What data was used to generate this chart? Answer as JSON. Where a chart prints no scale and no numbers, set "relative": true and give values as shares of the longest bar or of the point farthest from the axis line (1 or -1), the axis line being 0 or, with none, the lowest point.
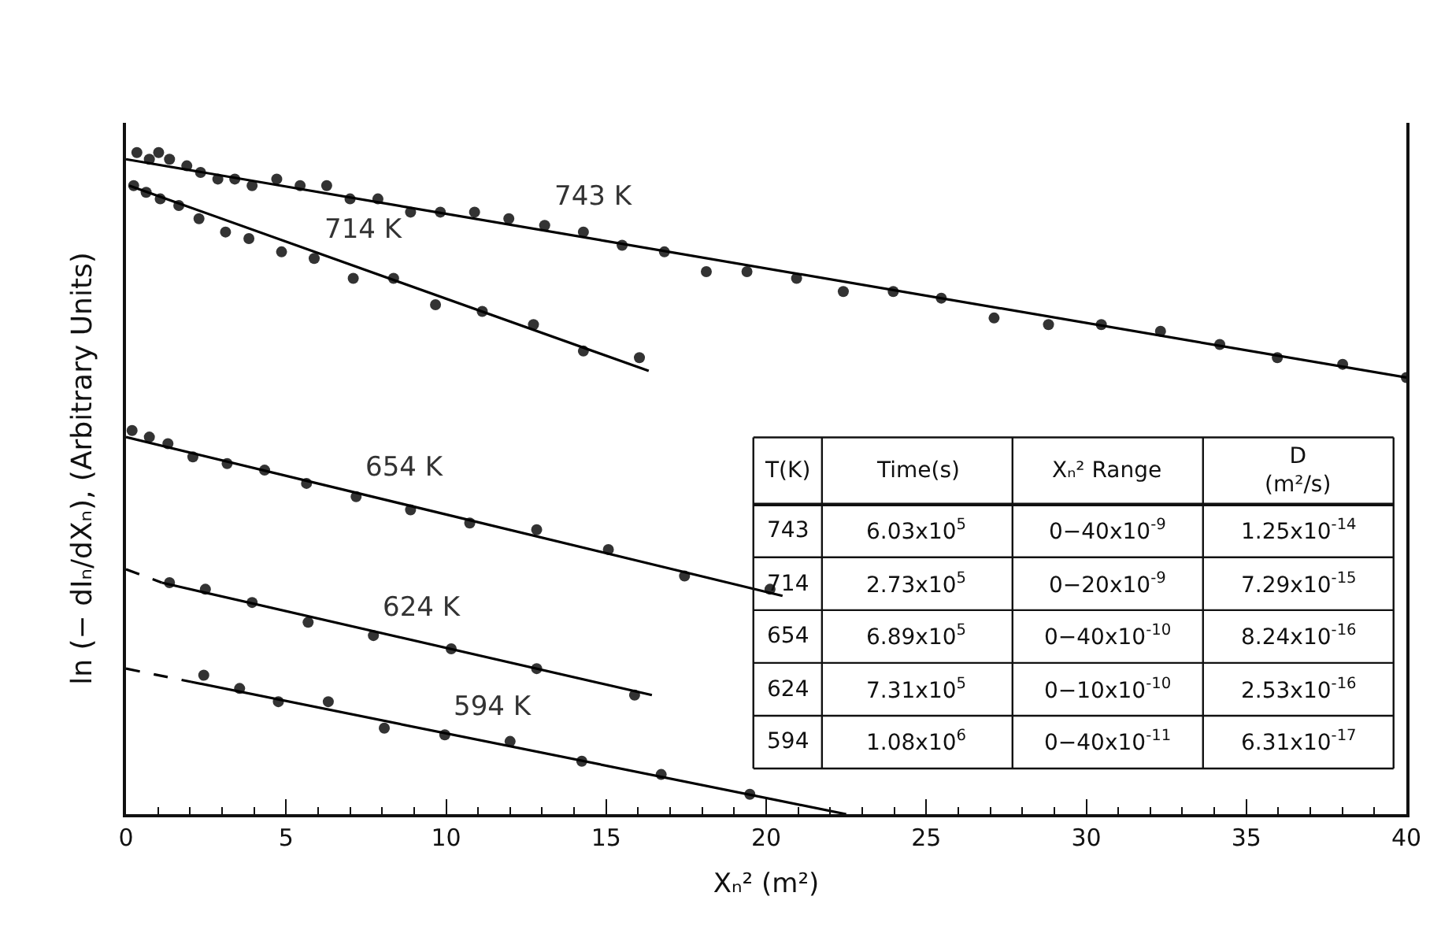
{
  "chart_data": {
    "type": "scatter",
    "relative": true,
    "xlabel": "Xₙ² (m²)",
    "ylabel": "ln (− dIₙ/dXₙ), (Arbitrary Units)",
    "xlim": [
      0,
      40
    ],
    "xticks": [
      0,
      5,
      10,
      15,
      20,
      25,
      30,
      35,
      40
    ],
    "legend": false,
    "marker": "circle",
    "series": [
      {
        "name": "743 K",
        "color": "#333333",
        "x": [
          0.34,
          0.73,
          1.02,
          1.36,
          1.9,
          2.33,
          2.87,
          3.4,
          3.94,
          4.71,
          5.44,
          6.27,
          7.0,
          7.87,
          8.89,
          9.82,
          10.89,
          11.96,
          13.08,
          14.29,
          15.5,
          16.82,
          18.13,
          19.4,
          20.95,
          22.41,
          23.97,
          25.47,
          27.12,
          28.82,
          30.47,
          32.32,
          34.17,
          35.97,
          38.01,
          40.0
        ],
        "values": [
          1.0,
          0.99,
          1.0,
          0.99,
          0.98,
          0.97,
          0.96,
          0.96,
          0.95,
          0.96,
          0.95,
          0.95,
          0.93,
          0.93,
          0.91,
          0.91,
          0.91,
          0.9,
          0.89,
          0.88,
          0.86,
          0.85,
          0.82,
          0.82,
          0.81,
          0.79,
          0.79,
          0.78,
          0.75,
          0.74,
          0.74,
          0.73,
          0.71,
          0.69,
          0.68,
          0.66
        ]
      },
      {
        "type": "line",
        "marker": "none",
        "color": "#000000",
        "line_style": "solid",
        "x": [
          0,
          40
        ],
        "values": [
          0.99,
          0.66
        ]
      },
      {
        "name": "714 K",
        "color": "#333333",
        "x": [
          0.24,
          0.63,
          1.07,
          1.65,
          2.28,
          3.11,
          3.84,
          4.86,
          5.88,
          7.1,
          8.36,
          9.67,
          11.13,
          12.73,
          14.29,
          16.04
        ],
        "values": [
          0.95,
          0.94,
          0.93,
          0.92,
          0.9,
          0.88,
          0.87,
          0.85,
          0.84,
          0.81,
          0.81,
          0.77,
          0.76,
          0.74,
          0.7,
          0.69
        ]
      },
      {
        "type": "line",
        "marker": "none",
        "color": "#000000",
        "line_style": "solid",
        "x": [
          0.1,
          16.33
        ],
        "values": [
          0.95,
          0.67
        ]
      },
      {
        "name": "654 K",
        "color": "#333333",
        "x": [
          0.19,
          0.73,
          1.31,
          2.09,
          3.16,
          4.33,
          5.64,
          7.19,
          8.89,
          10.74,
          12.83,
          15.07,
          17.45,
          20.12
        ],
        "values": [
          0.58,
          0.57,
          0.56,
          0.54,
          0.53,
          0.52,
          0.5,
          0.48,
          0.46,
          0.44,
          0.43,
          0.4,
          0.36,
          0.34
        ]
      },
      {
        "type": "line",
        "marker": "none",
        "color": "#000000",
        "line_style": "solid",
        "x": [
          0,
          20.51
        ],
        "values": [
          0.57,
          0.33
        ]
      },
      {
        "name": "624 K",
        "color": "#333333",
        "x": [
          1.36,
          2.48,
          3.94,
          5.69,
          7.73,
          10.16,
          12.83,
          15.89
        ],
        "values": [
          0.35,
          0.34,
          0.32,
          0.29,
          0.27,
          0.25,
          0.22,
          0.18
        ]
      },
      {
        "type": "line",
        "marker": "none",
        "color": "#000000",
        "line_style": "solid",
        "x": [
          1.12,
          16.43
        ],
        "values": [
          0.35,
          0.18
        ]
      },
      {
        "type": "line",
        "marker": "none",
        "color": "#000000",
        "line_style": "dashed",
        "x": [
          0,
          1.12
        ],
        "values": [
          0.37,
          0.35
        ]
      },
      {
        "name": "594 K",
        "color": "#333333",
        "x": [
          2.43,
          3.55,
          4.76,
          6.32,
          8.07,
          9.96,
          12.0,
          14.24,
          16.72,
          19.49
        ],
        "values": [
          0.21,
          0.19,
          0.17,
          0.17,
          0.13,
          0.12,
          0.11,
          0.08,
          0.06,
          0.03
        ]
      },
      {
        "type": "line",
        "marker": "none",
        "color": "#000000",
        "line_style": "solid",
        "x": [
          2.04,
          22.5
        ],
        "values": [
          0.2,
          0.0
        ]
      },
      {
        "type": "line",
        "marker": "none",
        "color": "#000000",
        "line_style": "dashed",
        "x": [
          0,
          2.04
        ],
        "values": [
          0.22,
          0.2
        ]
      }
    ],
    "annotations": [
      "T(K)",
      "Time(s)",
      "Xₙ² Range",
      "D\n(m²/s)",
      "743",
      "6.03x10$^{5}$",
      "0−40x10$^{-9}$",
      "1.25x10$^{-14}$",
      "714",
      "2.73x10$^{5}$",
      "0−20x10$^{-9}$",
      "7.29x10$^{-15}$",
      "654",
      "6.89x10$^{5}$",
      "0−40x10$^{-10}$",
      "8.24x10$^{-16}$",
      "624",
      "7.31x10$^{5}$",
      "0−10x10$^{-10}$",
      "2.53x10$^{-16}$",
      "594",
      "1.08x10$^{6}$",
      "0−40x10$^{-11}$",
      "6.31x10$^{-17}$"
    ]
  }
}
